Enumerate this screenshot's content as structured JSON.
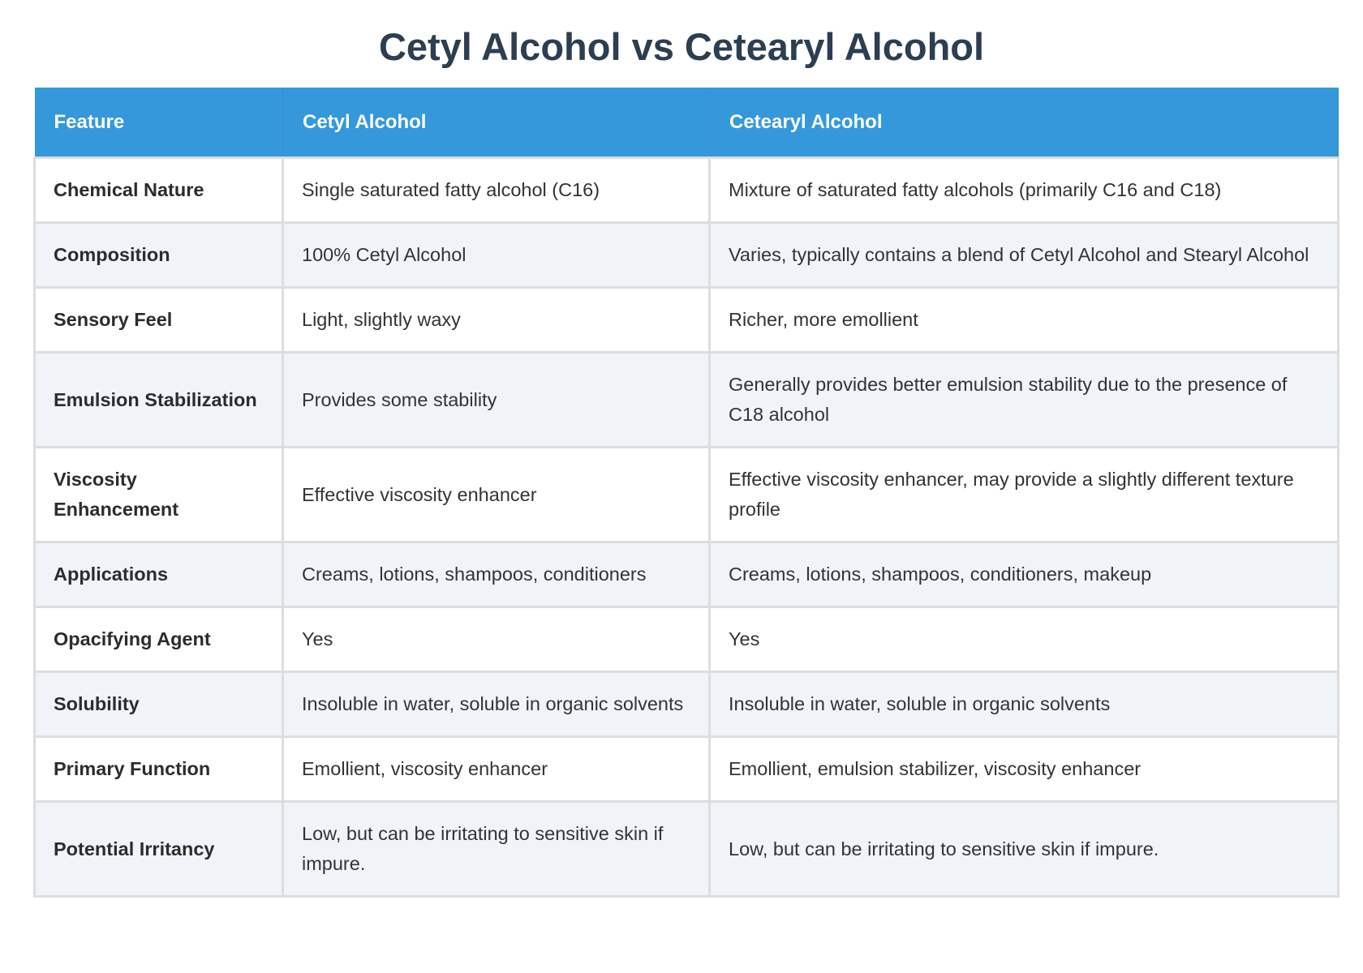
{
  "title": "Cetyl Alcohol vs Cetearyl Alcohol",
  "table": {
    "headers": [
      "Feature",
      "Cetyl Alcohol",
      "Cetearyl Alcohol"
    ],
    "rows": [
      [
        "Chemical Nature",
        "Single saturated fatty alcohol (C16)",
        "Mixture of saturated fatty alcohols (primarily C16 and C18)"
      ],
      [
        "Composition",
        "100% Cetyl Alcohol",
        "Varies, typically contains a blend of Cetyl Alcohol and Stearyl Alcohol"
      ],
      [
        "Sensory Feel",
        "Light, slightly waxy",
        "Richer, more emollient"
      ],
      [
        "Emulsion Stabilization",
        "Provides some stability",
        "Generally provides better emulsion stability due to the presence of C18 alcohol"
      ],
      [
        "Viscosity Enhancement",
        "Effective viscosity enhancer",
        "Effective viscosity enhancer, may provide a slightly different texture profile"
      ],
      [
        "Applications",
        "Creams, lotions, shampoos, conditioners",
        "Creams, lotions, shampoos, conditioners, makeup"
      ],
      [
        "Opacifying Agent",
        "Yes",
        "Yes"
      ],
      [
        "Solubility",
        "Insoluble in water, soluble in organic solvents",
        "Insoluble in water, soluble in organic solvents"
      ],
      [
        "Primary Function",
        "Emollient, viscosity enhancer",
        "Emollient, emulsion stabilizer, viscosity enhancer"
      ],
      [
        "Potential Irritancy",
        "Low, but can be irritating to sensitive skin if impure.",
        "Low, but can be irritating to sensitive skin if impure."
      ]
    ]
  },
  "colors": {
    "header_bg": "#3498db",
    "title": "#2c3e50",
    "alt_row": "#f0f4f9"
  }
}
